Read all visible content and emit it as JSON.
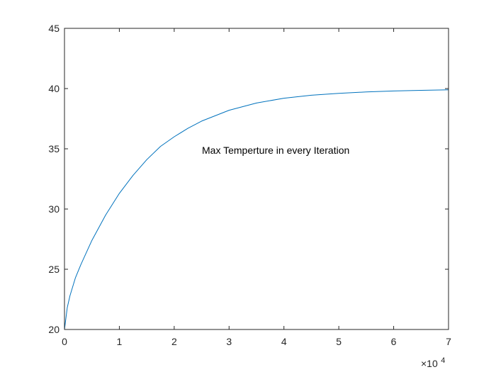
{
  "chart_data": {
    "type": "line",
    "title": "",
    "xlabel": "",
    "ylabel": "",
    "xlim": [
      0,
      70000
    ],
    "ylim": [
      20,
      45
    ],
    "x_ticks": [
      0,
      1,
      2,
      3,
      4,
      5,
      6,
      7
    ],
    "x_tick_labels": [
      "0",
      "1",
      "2",
      "3",
      "4",
      "5",
      "6",
      "7"
    ],
    "x_exponent_base": "×10",
    "x_exponent_power": "4",
    "y_ticks": [
      20,
      25,
      30,
      35,
      40,
      45
    ],
    "y_tick_labels": [
      "20",
      "25",
      "30",
      "35",
      "40",
      "45"
    ],
    "grid": false,
    "annotation": "Max Temperture in every Iteration",
    "series": [
      {
        "color": "#0072BD",
        "x": [
          0,
          500,
          1000,
          2000,
          3000,
          5000,
          7500,
          10000,
          12500,
          15000,
          17500,
          20000,
          22500,
          25000,
          30000,
          35000,
          40000,
          45000,
          50000,
          55000,
          60000,
          65000,
          70000
        ],
        "y": [
          20.0,
          21.8,
          22.8,
          24.3,
          25.4,
          27.4,
          29.5,
          31.3,
          32.8,
          34.1,
          35.2,
          36.0,
          36.7,
          37.3,
          38.2,
          38.8,
          39.2,
          39.45,
          39.6,
          39.72,
          39.8,
          39.85,
          39.9
        ]
      }
    ]
  }
}
